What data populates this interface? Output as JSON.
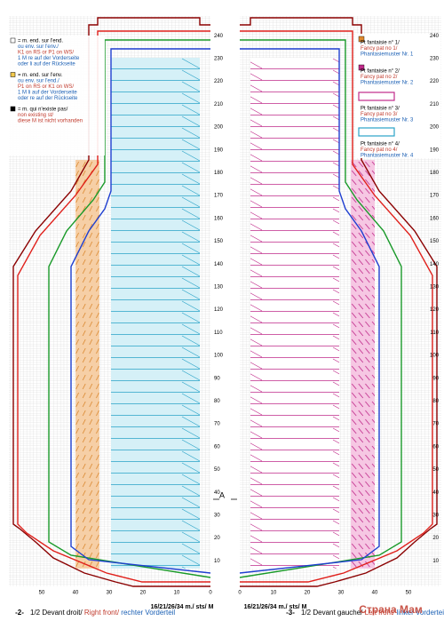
{
  "legend_left": [
    {
      "lines": [
        "= m. end. sur l'end.",
        "ou env. sur l'env./",
        "K1 on RS or P1 on WS/",
        "1 M re auf der Vorderseite",
        "oder li auf der Rückseite"
      ]
    },
    {
      "lines": [
        "= m. end. sur l'env.",
        "ou env. sur l'end./",
        "P1 on RS or K1 on WS/",
        "1 M li auf der Vorderseite",
        "oder re auf der Rückseite"
      ]
    },
    {
      "lines": [
        "= m. qui n'existe pas/",
        "non existing st/",
        "diese M ist nicht vorhanden"
      ]
    }
  ],
  "legend_right": [
    {
      "lines": [
        "Pt fantaisie n° 1/",
        "Fancy pat no 1/",
        "Phantasiemuster Nr. 1"
      ]
    },
    {
      "lines": [
        "Pt fantaisie n° 2/",
        "Fancy pat no 2/",
        "Phantasiemuster Nr. 2"
      ]
    },
    {
      "lines": [
        "Pt fantaisie n° 3/",
        "Fancy pat no 3/",
        "Phantasiemuster Nr. 3"
      ]
    },
    {
      "lines": [
        "Pt fantaisie n° 4/",
        "Fancy pat no 4/",
        "Phantasiemuster Nr. 4"
      ]
    }
  ],
  "rows": [
    10,
    20,
    30,
    40,
    50,
    60,
    70,
    80,
    90,
    100,
    110,
    120,
    130,
    140,
    150,
    160,
    170,
    180,
    190,
    200,
    210,
    220,
    230,
    240
  ],
  "columns": [
    50,
    40,
    30,
    20,
    10,
    0
  ],
  "stitch_label": "16/21/26/34 m./ sts/ M",
  "marker": "A",
  "left_caption": {
    "number": "-2-",
    "parts": [
      "1/2 Devant droit/ ",
      "Right front/ ",
      "rechter Vorderteil"
    ]
  },
  "right_caption": {
    "number": "-3-",
    "parts": [
      "1/2 Devant gauche/ ",
      "Left front/ ",
      "linker Vorderteil"
    ]
  },
  "watermark": "Страна Мам"
}
